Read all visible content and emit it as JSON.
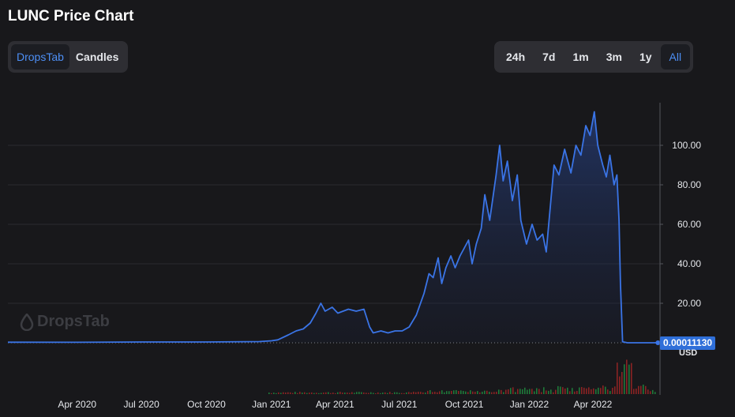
{
  "title": "LUNC Price Chart",
  "view_tabs": [
    {
      "label": "DropsTab",
      "active": true
    },
    {
      "label": "Candles",
      "active": false
    }
  ],
  "range_tabs": [
    {
      "label": "24h",
      "active": false
    },
    {
      "label": "7d",
      "active": false
    },
    {
      "label": "1m",
      "active": false
    },
    {
      "label": "3m",
      "active": false
    },
    {
      "label": "1y",
      "active": false
    },
    {
      "label": "All",
      "active": true
    }
  ],
  "watermark": "DropsTab",
  "current_price": "0.00011130",
  "currency": "USD",
  "colors": {
    "line": "#3a74e6",
    "background": "#18181b",
    "active_tab": "#4d8ff5",
    "badge": "#2f6fd9"
  },
  "chart_data": {
    "type": "area",
    "x_tick_labels": [
      "Apr 2020",
      "Jul 2020",
      "Oct 2020",
      "Jan 2021",
      "Apr 2021",
      "Jul 2021",
      "Oct 2021",
      "Jan 2022",
      "Apr 2022"
    ],
    "y_tick_labels": [
      "100.00",
      "80.00",
      "60.00",
      "40.00",
      "20.00"
    ],
    "y_ticks": [
      100,
      80,
      60,
      40,
      20
    ],
    "ylim": [
      0,
      120
    ],
    "xlim": [
      "2019-12-25",
      "2022-07-05"
    ],
    "grid": true,
    "series": [
      {
        "values": [
          [
            "2019-12-25",
            0.3
          ],
          [
            "2020-04-01",
            0.25
          ],
          [
            "2020-07-01",
            0.4
          ],
          [
            "2020-10-01",
            0.4
          ],
          [
            "2020-12-15",
            0.6
          ],
          [
            "2021-01-01",
            1
          ],
          [
            "2021-01-10",
            1.5
          ],
          [
            "2021-01-25",
            4
          ],
          [
            "2021-02-05",
            6
          ],
          [
            "2021-02-15",
            7
          ],
          [
            "2021-02-25",
            10
          ],
          [
            "2021-03-05",
            15
          ],
          [
            "2021-03-12",
            20
          ],
          [
            "2021-03-18",
            16
          ],
          [
            "2021-03-28",
            18
          ],
          [
            "2021-04-05",
            15
          ],
          [
            "2021-04-20",
            17
          ],
          [
            "2021-05-01",
            16
          ],
          [
            "2021-05-12",
            17
          ],
          [
            "2021-05-20",
            8
          ],
          [
            "2021-05-25",
            5
          ],
          [
            "2021-06-05",
            6
          ],
          [
            "2021-06-15",
            5
          ],
          [
            "2021-06-25",
            6
          ],
          [
            "2021-07-05",
            6
          ],
          [
            "2021-07-15",
            8
          ],
          [
            "2021-07-25",
            14
          ],
          [
            "2021-08-05",
            25
          ],
          [
            "2021-08-12",
            35
          ],
          [
            "2021-08-18",
            33
          ],
          [
            "2021-08-25",
            43
          ],
          [
            "2021-08-30",
            30
          ],
          [
            "2021-09-05",
            38
          ],
          [
            "2021-09-12",
            44
          ],
          [
            "2021-09-18",
            38
          ],
          [
            "2021-09-25",
            44
          ],
          [
            "2021-10-01",
            48
          ],
          [
            "2021-10-07",
            52
          ],
          [
            "2021-10-12",
            40
          ],
          [
            "2021-10-18",
            50
          ],
          [
            "2021-10-25",
            58
          ],
          [
            "2021-10-30",
            75
          ],
          [
            "2021-11-06",
            62
          ],
          [
            "2021-11-15",
            85
          ],
          [
            "2021-11-20",
            100
          ],
          [
            "2021-11-25",
            82
          ],
          [
            "2021-12-01",
            92
          ],
          [
            "2021-12-08",
            72
          ],
          [
            "2021-12-15",
            85
          ],
          [
            "2021-12-20",
            62
          ],
          [
            "2021-12-28",
            50
          ],
          [
            "2022-01-05",
            60
          ],
          [
            "2022-01-12",
            52
          ],
          [
            "2022-01-20",
            55
          ],
          [
            "2022-01-25",
            46
          ],
          [
            "2022-02-05",
            90
          ],
          [
            "2022-02-12",
            85
          ],
          [
            "2022-02-20",
            98
          ],
          [
            "2022-03-01",
            86
          ],
          [
            "2022-03-08",
            100
          ],
          [
            "2022-03-15",
            95
          ],
          [
            "2022-03-22",
            110
          ],
          [
            "2022-03-28",
            105
          ],
          [
            "2022-04-03",
            117
          ],
          [
            "2022-04-08",
            100
          ],
          [
            "2022-04-15",
            90
          ],
          [
            "2022-04-20",
            84
          ],
          [
            "2022-04-25",
            95
          ],
          [
            "2022-05-01",
            80
          ],
          [
            "2022-05-05",
            85
          ],
          [
            "2022-05-08",
            62
          ],
          [
            "2022-05-10",
            30
          ],
          [
            "2022-05-13",
            0.5
          ],
          [
            "2022-05-20",
            0.0001
          ],
          [
            "2022-06-20",
            0.00011
          ],
          [
            "2022-07-02",
            0.0001113
          ]
        ]
      }
    ]
  }
}
